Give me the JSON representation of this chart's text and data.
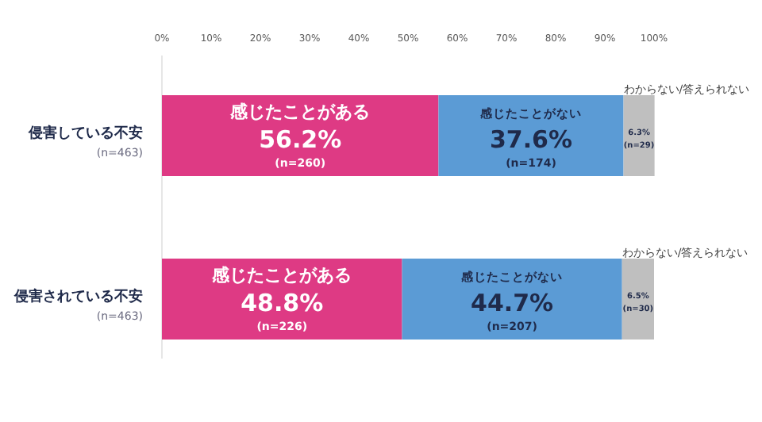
{
  "chart_data": {
    "type": "bar",
    "orientation": "horizontal",
    "stacked": true,
    "categories": [
      "侵害している不安\n(n=463)",
      "侵害されている不安\n(n=463)"
    ],
    "xlim": [
      0,
      100
    ],
    "xticks": [
      {
        "value": 0,
        "label": "0%"
      },
      {
        "value": 10,
        "label": "10%"
      },
      {
        "value": 20,
        "label": "20%"
      },
      {
        "value": 30,
        "label": "30%"
      },
      {
        "value": 40,
        "label": "40%"
      },
      {
        "value": 50,
        "label": "50%"
      },
      {
        "value": 60,
        "label": "60%"
      },
      {
        "value": 70,
        "label": "70%"
      },
      {
        "value": 80,
        "label": "80%"
      },
      {
        "value": 90,
        "label": "90%"
      },
      {
        "value": 100,
        "label": "100%"
      }
    ],
    "series": [
      {
        "name": "感じたことがある",
        "color": "#de3a84",
        "values": [
          56.2,
          48.8
        ],
        "value_labels": [
          "56.2%\n(n=260)",
          "48.8%\n(n=226)"
        ]
      },
      {
        "name": "感じたことがない",
        "color": "#5b9bd5",
        "values": [
          37.6,
          44.7
        ],
        "value_labels": [
          "37.6%\n(n=174)",
          "44.7%\n(n=207)"
        ]
      },
      {
        "name": "わからない/答えられない",
        "color": "#bfbfbf",
        "values": [
          6.3,
          6.5
        ],
        "value_labels": [
          "6.3%\n(n=29)",
          "6.5%\n(n=30)"
        ]
      }
    ]
  }
}
